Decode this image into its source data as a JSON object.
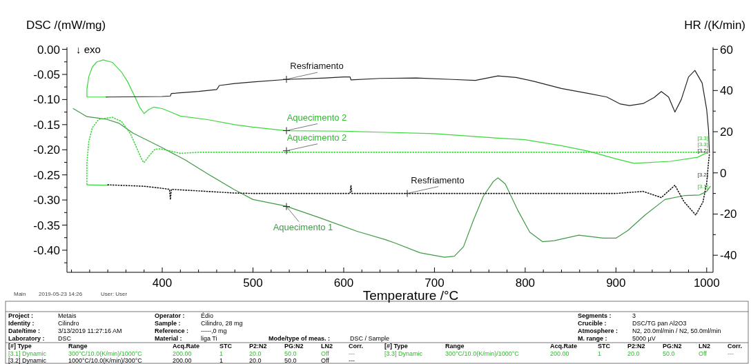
{
  "chart_data": {
    "type": "line",
    "xlabel": "Temperature /°C",
    "ylabel": "DSC /(mW/mg)",
    "y2label": "HR /(K/min)",
    "xlim": [
      295,
      1007
    ],
    "ylim": [
      -0.444,
      0.004
    ],
    "y2lim": [
      -48.3,
      61
    ],
    "xticks": [
      {
        "value": 300,
        "label": null
      },
      {
        "value": 320,
        "label": null
      },
      {
        "value": 340,
        "label": null
      },
      {
        "value": 360,
        "label": null
      },
      {
        "value": 380,
        "label": null
      },
      400,
      {
        "value": 420,
        "label": null
      },
      {
        "value": 440,
        "label": null
      },
      {
        "value": 460,
        "label": null
      },
      {
        "value": 480,
        "label": null
      },
      500,
      {
        "value": 520,
        "label": null
      },
      {
        "value": 540,
        "label": null
      },
      {
        "value": 560,
        "label": null
      },
      {
        "value": 580,
        "label": null
      },
      600,
      {
        "value": 620,
        "label": null
      },
      {
        "value": 640,
        "label": null
      },
      {
        "value": 660,
        "label": null
      },
      {
        "value": 680,
        "label": null
      },
      700,
      {
        "value": 720,
        "label": null
      },
      {
        "value": 740,
        "label": null
      },
      {
        "value": 760,
        "label": null
      },
      {
        "value": 780,
        "label": null
      },
      800,
      {
        "value": 820,
        "label": null
      },
      {
        "value": 840,
        "label": null
      },
      {
        "value": 860,
        "label": null
      },
      {
        "value": 880,
        "label": null
      },
      900,
      {
        "value": 920,
        "label": null
      },
      {
        "value": 940,
        "label": null
      },
      {
        "value": 960,
        "label": null
      },
      {
        "value": 980,
        "label": null
      },
      1000
    ],
    "yticks": [
      {
        "value": 0,
        "label": "0.00"
      },
      {
        "value": -0.025,
        "label": null
      },
      {
        "value": -0.05,
        "label": "-0.05"
      },
      {
        "value": -0.075,
        "label": null
      },
      {
        "value": -0.1,
        "label": "-0.10"
      },
      {
        "value": -0.125,
        "label": null
      },
      {
        "value": -0.15,
        "label": "-0.15"
      },
      {
        "value": -0.175,
        "label": null
      },
      {
        "value": -0.2,
        "label": "-0.20"
      },
      {
        "value": -0.225,
        "label": null
      },
      {
        "value": -0.25,
        "label": "-0.25"
      },
      {
        "value": -0.275,
        "label": null
      },
      {
        "value": -0.3,
        "label": "-0.30"
      },
      {
        "value": -0.325,
        "label": null
      },
      {
        "value": -0.35,
        "label": "-0.35"
      },
      {
        "value": -0.375,
        "label": null
      },
      {
        "value": -0.4,
        "label": "-0.40"
      },
      {
        "value": -0.425,
        "label": null
      }
    ],
    "y2ticks": [
      60,
      {
        "value": 50,
        "label": null
      },
      40,
      {
        "value": 30,
        "label": null
      },
      20,
      {
        "value": 10,
        "label": null
      },
      0,
      {
        "value": -10,
        "label": null
      },
      -20,
      {
        "value": -30,
        "label": null
      },
      -40
    ],
    "series": [
      {
        "color": "#3f9a46",
        "x": [
          302,
          317,
          338,
          352,
          368,
          400,
          425,
          452,
          479,
          500,
          536,
          573,
          614,
          646,
          657,
          684,
          711,
          722,
          732,
          743,
          754,
          765,
          770,
          778,
          792,
          805,
          819,
          832,
          859,
          886,
          900,
          913,
          932,
          954,
          976,
          992,
          1000,
          1004
        ],
        "values": [
          -0.118,
          -0.134,
          -0.139,
          -0.147,
          -0.167,
          -0.196,
          -0.22,
          -0.25,
          -0.279,
          -0.299,
          -0.312,
          -0.335,
          -0.362,
          -0.379,
          -0.386,
          -0.405,
          -0.414,
          -0.412,
          -0.393,
          -0.34,
          -0.292,
          -0.263,
          -0.256,
          -0.268,
          -0.321,
          -0.364,
          -0.383,
          -0.381,
          -0.37,
          -0.376,
          -0.376,
          -0.361,
          -0.33,
          -0.299,
          -0.291,
          -0.29,
          -0.283,
          -0.273
        ]
      },
      {
        "color": "#3ad83a",
        "x": [
          340,
          317,
          317,
          319,
          323,
          328,
          335,
          345,
          355,
          362,
          370,
          375,
          380,
          385,
          391,
          400,
          420,
          450,
          480,
          500,
          537,
          600,
          640,
          700,
          770,
          800,
          840,
          870,
          900,
          920,
          960,
          990,
          1000
        ],
        "values": [
          -0.095,
          -0.095,
          -0.08,
          -0.055,
          -0.035,
          -0.025,
          -0.021,
          -0.026,
          -0.045,
          -0.065,
          -0.095,
          -0.115,
          -0.128,
          -0.12,
          -0.115,
          -0.118,
          -0.133,
          -0.14,
          -0.15,
          -0.155,
          -0.162,
          -0.163,
          -0.165,
          -0.168,
          -0.177,
          -0.18,
          -0.192,
          -0.203,
          -0.218,
          -0.227,
          -0.223,
          -0.215,
          -0.206
        ]
      },
      {
        "color": "#222222",
        "x": [
          338,
          400,
          409,
          410,
          440,
          460,
          463,
          480,
          500,
          537,
          580,
          600,
          607,
          608,
          640,
          680,
          720,
          745,
          770,
          790,
          810,
          840,
          870,
          890,
          905,
          915,
          930,
          942,
          950,
          958,
          965,
          972,
          980,
          987,
          995,
          1000,
          1002,
          1003
        ],
        "values": [
          -0.095,
          -0.094,
          -0.093,
          -0.088,
          -0.084,
          -0.08,
          -0.072,
          -0.068,
          -0.065,
          -0.06,
          -0.057,
          -0.055,
          -0.055,
          -0.061,
          -0.058,
          -0.057,
          -0.06,
          -0.062,
          -0.053,
          -0.056,
          -0.064,
          -0.078,
          -0.088,
          -0.095,
          -0.109,
          -0.112,
          -0.108,
          -0.096,
          -0.084,
          -0.095,
          -0.125,
          -0.1,
          -0.055,
          -0.042,
          -0.067,
          -0.12,
          -0.16,
          -0.206
        ]
      },
      {
        "color": "#3ad83a",
        "axis": "y2",
        "line_style": "dotted",
        "x": [
          317,
          317,
          319,
          323,
          330,
          345,
          355,
          365,
          372,
          378,
          380,
          385,
          392,
          398,
          410,
          420,
          440,
          1000
        ],
        "values": [
          -5.5,
          5,
          15,
          22,
          26,
          27,
          25,
          19,
          12,
          6,
          5,
          8,
          11.5,
          11.7,
          10.5,
          9.5,
          10,
          10
        ]
      },
      {
        "color": "#3ad83a",
        "axis": "y2",
        "x": [
          317,
          340
        ],
        "values": [
          -5.8,
          -6
        ]
      },
      {
        "color": "#111111",
        "axis": "y2",
        "line_style": "dotted",
        "x": [
          340,
          380,
          400,
          408,
          409,
          410,
          430,
          480,
          500,
          607,
          608,
          609,
          900,
          930,
          950,
          965,
          975,
          988,
          996,
          1000,
          1002,
          1003
        ],
        "values": [
          -5.8,
          -6.5,
          -7.5,
          -8,
          -13,
          -8,
          -8.5,
          -9.8,
          -10,
          -10,
          -6,
          -10,
          -10,
          -9,
          -12,
          -6,
          -14,
          -20.5,
          -14,
          -5,
          5,
          9
        ]
      }
    ],
    "annotations": [
      "↓ exo",
      "Resfriamento",
      "Aquecimento 2",
      "Aquecimento 2",
      "Resfriamento",
      "Aquecimento 1",
      "[3.3]",
      "[3.3]",
      "[3.2]",
      "[3.2]",
      "[3.1]",
      "Main",
      "2019-05-23 14:26",
      "User: User",
      "Project :",
      "Metais",
      "Operator :",
      "Édio",
      "Segments :",
      "3",
      "Identity :",
      "Cilindro",
      "Sample :",
      "Cilindro, 28 mg",
      "Crucible :",
      "DSC/TG pan Al2O3",
      "Date/time :",
      "3/13/2019 11:27:16 AM",
      "Reference :",
      "-----,0 mg",
      "Atmosphere :",
      "N2, 20.0ml/min / N2, 50.0ml/min",
      "Laboratory :",
      "DSC",
      "Material :",
      "liga Ti",
      "Mode/type of meas. :",
      "DSC / Sample",
      "M. range :",
      "5000 µV",
      "[#] Type",
      "Range",
      "Acq.Rate",
      "STC",
      "P2:N2",
      "PG:N2",
      "LN2",
      "Corr.",
      "[#] Type",
      "Range",
      "Acq.Rate",
      "STC",
      "P2:N2",
      "PG:N2",
      "LN2",
      "Corr.",
      "[3.1] Dynamic",
      "300°C/10.0(K/min)/1000°C",
      "200.00",
      "1",
      "20.0",
      "50.0",
      "Off",
      "---",
      "[3.2] Dynamic",
      "1000°C/10.0(K/min)/300°C",
      "200.00",
      "1",
      "20.0",
      "50.0",
      "Off",
      "---",
      "[3.3] Dynamic",
      "300°C/10.0(K/min)/1000°C",
      "200.00",
      "1",
      "20.0",
      "50.0",
      "Off",
      "---"
    ]
  }
}
